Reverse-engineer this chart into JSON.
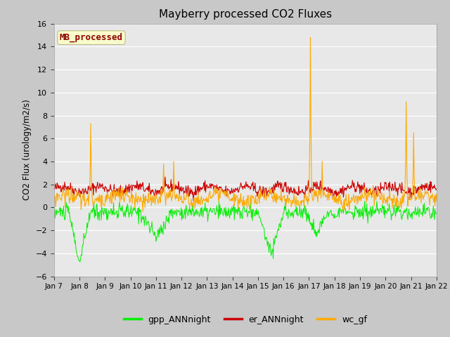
{
  "title": "Mayberry processed CO2 Fluxes",
  "ylabel": "CO2 Flux (urology/m2/s)",
  "ylim": [
    -6,
    16
  ],
  "yticks": [
    -6,
    -4,
    -2,
    0,
    2,
    4,
    6,
    8,
    10,
    12,
    14,
    16
  ],
  "xlabel": "",
  "fig_bg_color": "#c8c8c8",
  "plot_bg_color": "#e8e8e8",
  "grid_color": "white",
  "legend_labels": [
    "gpp_ANNnight",
    "er_ANNnight",
    "wc_gf"
  ],
  "legend_colors": [
    "#00ee00",
    "#cc0000",
    "#ffaa00"
  ],
  "watermark_text": "MB_processed",
  "watermark_color": "#8b0000",
  "watermark_bg": "#ffffcc",
  "n_days": 15,
  "seed": 42,
  "xtick_labels": [
    "Jan 7",
    "Jan 8",
    "Jan 9",
    "Jan 10",
    "Jan 11",
    "Jan 12",
    "Jan 13",
    "Jan 14",
    "Jan 15",
    "Jan 16",
    "Jan 17",
    "Jan 18",
    "Jan 19",
    "Jan 20",
    "Jan 21",
    "Jan 22"
  ]
}
